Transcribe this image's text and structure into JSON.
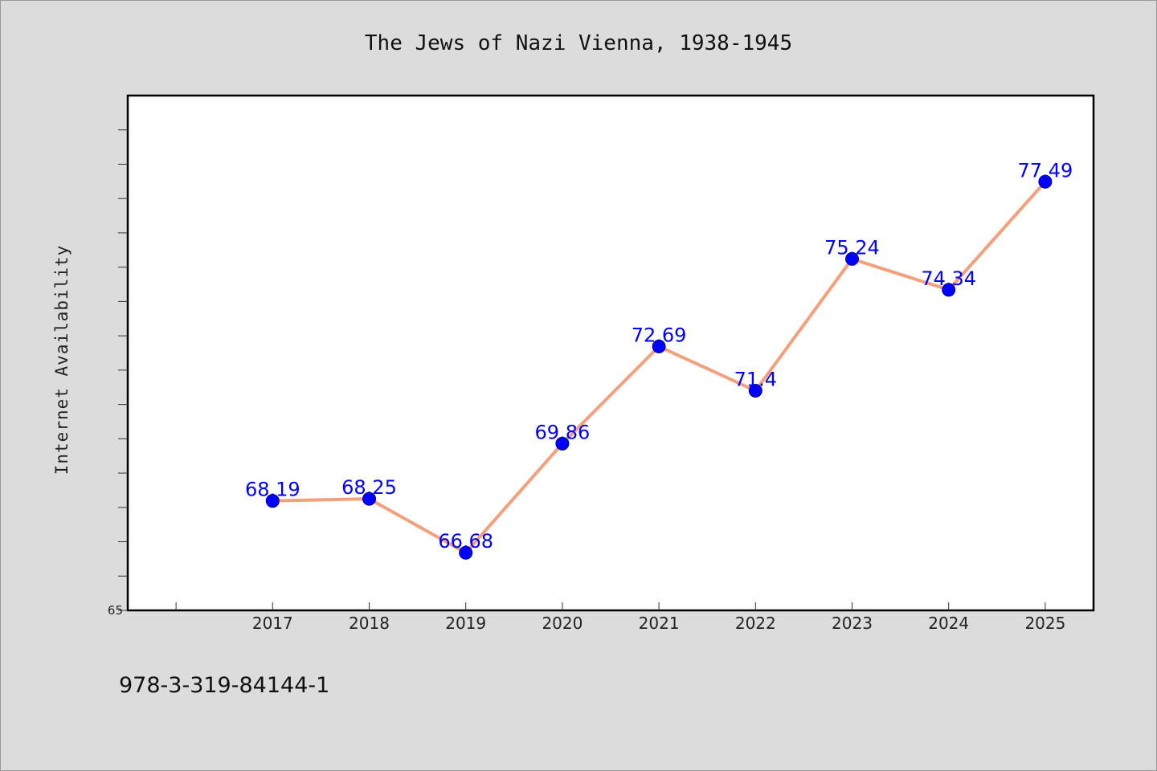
{
  "title": "The Jews of Nazi Vienna, 1938-1945",
  "footer": "978-3-319-84144-1",
  "colors": {
    "background": "#dcdcdc",
    "plot_background": "#ffffff",
    "line": "#f4a07c",
    "marker": "#0000ff",
    "data_label": "#0000ff"
  },
  "chart_data": {
    "type": "line",
    "title": "The Jews of Nazi Vienna, 1938-1945",
    "xlabel": "",
    "ylabel": "Internet Availability",
    "categories": [
      "2017",
      "2018",
      "2019",
      "2020",
      "2021",
      "2022",
      "2023",
      "2024",
      "2025"
    ],
    "series": [
      {
        "values": [
          68.19,
          68.25,
          66.68,
          69.86,
          72.69,
          71.4,
          75.24,
          74.34,
          77.49
        ]
      }
    ],
    "data_labels": [
      "68.19",
      "68.25",
      "66.68",
      "69.86",
      "72.69",
      "71.4",
      "75.24",
      "74.34",
      "77.49"
    ],
    "ylim": [
      65,
      80
    ],
    "yticks_labeled": [
      "65"
    ],
    "x_range": [
      2015.5,
      2025.5
    ],
    "grid": false,
    "legend": "none"
  }
}
